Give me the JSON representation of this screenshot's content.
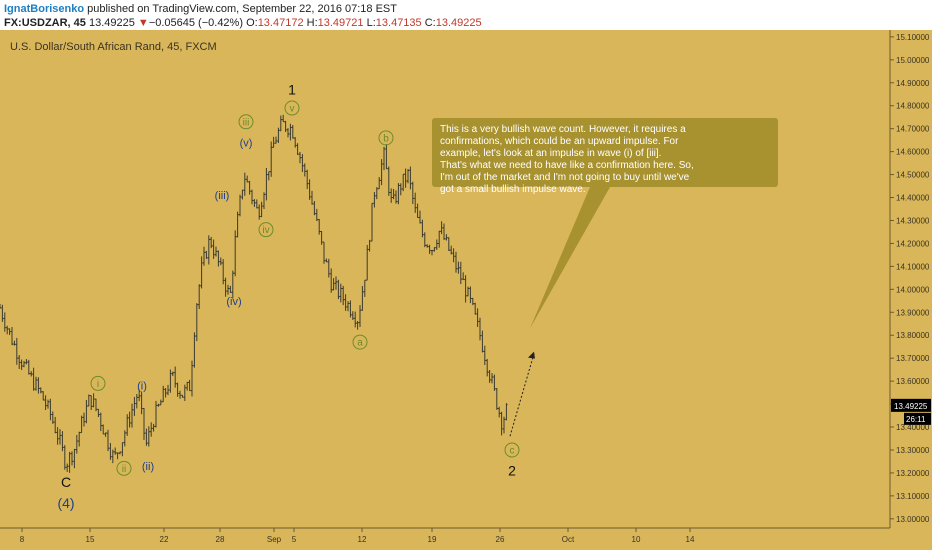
{
  "header": {
    "author": "IgnatBorisenko",
    "published": " published on TradingView.com, September 22, 2016 07:18 EST",
    "symbol": "FX:USDZAR, 45",
    "last": "13.49225",
    "change_arrow": "▼",
    "change": "−0.05645 (−0.42%)",
    "o_label": "O:",
    "o": "13.47172",
    "h_label": "H:",
    "h": "13.49721",
    "l_label": "L:",
    "l": "13.47135",
    "c_label": "C:",
    "c": "13.49225"
  },
  "colors": {
    "background": "#d9b65a",
    "candle": "#3a3a2e",
    "price_line": "#3a3a2e",
    "callout_fill": "#a8912f",
    "circle_label": "#6e8c2a",
    "roman_blue": "#1d3f8c",
    "price_tag": "#000000"
  },
  "chart_data": {
    "type": "candlestick",
    "title": "U.S. Dollar/South African Rand, 45, FXCM",
    "ylim": [
      12.96,
      15.13
    ],
    "y_ticks": [
      "15.10000",
      "15.00000",
      "14.90000",
      "14.80000",
      "14.70000",
      "14.60000",
      "14.50000",
      "14.40000",
      "14.30000",
      "14.20000",
      "14.10000",
      "14.00000",
      "13.90000",
      "13.80000",
      "13.70000",
      "13.60000",
      "13.50000",
      "13.40000",
      "13.30000",
      "13.20000",
      "13.10000",
      "13.00000"
    ],
    "x_ticks": [
      "8",
      "15",
      "22",
      "28",
      "Sep",
      "5",
      "12",
      "19",
      "26",
      "Oct",
      "10",
      "14"
    ],
    "x_tick_pos": [
      1.1,
      4.5,
      8.2,
      11.0,
      13.7,
      14.7,
      18.1,
      21.6,
      25.0,
      28.4,
      31.8,
      34.5
    ],
    "xlim": [
      0,
      44.5
    ],
    "last_price_label": "13.49225",
    "countdown": "26:11",
    "series": [
      {
        "x": 0.0,
        "y": 13.92
      },
      {
        "x": 0.5,
        "y": 13.8
      },
      {
        "x": 1.0,
        "y": 13.7
      },
      {
        "x": 1.5,
        "y": 13.62
      },
      {
        "x": 2.0,
        "y": 13.55
      },
      {
        "x": 2.5,
        "y": 13.46
      },
      {
        "x": 2.9,
        "y": 13.36
      },
      {
        "x": 3.3,
        "y": 13.24
      },
      {
        "x": 3.7,
        "y": 13.3
      },
      {
        "x": 4.1,
        "y": 13.42
      },
      {
        "x": 4.5,
        "y": 13.53
      },
      {
        "x": 4.9,
        "y": 13.46
      },
      {
        "x": 5.3,
        "y": 13.36
      },
      {
        "x": 5.7,
        "y": 13.26
      },
      {
        "x": 6.1,
        "y": 13.34
      },
      {
        "x": 6.5,
        "y": 13.45
      },
      {
        "x": 6.9,
        "y": 13.55
      },
      {
        "x": 7.3,
        "y": 13.32
      },
      {
        "x": 7.7,
        "y": 13.44
      },
      {
        "x": 8.1,
        "y": 13.52
      },
      {
        "x": 8.6,
        "y": 13.62
      },
      {
        "x": 9.1,
        "y": 13.54
      },
      {
        "x": 9.5,
        "y": 13.58
      },
      {
        "x": 9.8,
        "y": 13.92
      },
      {
        "x": 10.1,
        "y": 14.1
      },
      {
        "x": 10.5,
        "y": 14.22
      },
      {
        "x": 10.9,
        "y": 14.12
      },
      {
        "x": 11.2,
        "y": 14.04
      },
      {
        "x": 11.5,
        "y": 13.96
      },
      {
        "x": 11.8,
        "y": 14.25
      },
      {
        "x": 12.2,
        "y": 14.5
      },
      {
        "x": 12.6,
        "y": 14.4
      },
      {
        "x": 12.9,
        "y": 14.33
      },
      {
        "x": 13.3,
        "y": 14.48
      },
      {
        "x": 13.7,
        "y": 14.64
      },
      {
        "x": 14.1,
        "y": 14.72
      },
      {
        "x": 14.6,
        "y": 14.7
      },
      {
        "x": 15.0,
        "y": 14.58
      },
      {
        "x": 15.4,
        "y": 14.45
      },
      {
        "x": 15.8,
        "y": 14.3
      },
      {
        "x": 16.2,
        "y": 14.14
      },
      {
        "x": 16.6,
        "y": 14.02
      },
      {
        "x": 17.0,
        "y": 13.98
      },
      {
        "x": 17.5,
        "y": 13.92
      },
      {
        "x": 17.9,
        "y": 13.87
      },
      {
        "x": 18.3,
        "y": 14.1
      },
      {
        "x": 18.7,
        "y": 14.42
      },
      {
        "x": 19.2,
        "y": 14.58
      },
      {
        "x": 19.6,
        "y": 14.36
      },
      {
        "x": 20.0,
        "y": 14.45
      },
      {
        "x": 20.4,
        "y": 14.5
      },
      {
        "x": 20.8,
        "y": 14.32
      },
      {
        "x": 21.2,
        "y": 14.22
      },
      {
        "x": 21.6,
        "y": 14.18
      },
      {
        "x": 22.0,
        "y": 14.26
      },
      {
        "x": 22.4,
        "y": 14.18
      },
      {
        "x": 22.8,
        "y": 14.1
      },
      {
        "x": 23.2,
        "y": 14.02
      },
      {
        "x": 23.6,
        "y": 13.92
      },
      {
        "x": 24.0,
        "y": 13.8
      },
      {
        "x": 24.4,
        "y": 13.66
      },
      {
        "x": 24.8,
        "y": 13.52
      },
      {
        "x": 25.1,
        "y": 13.42
      },
      {
        "x": 25.4,
        "y": 13.49
      }
    ],
    "projection": [
      {
        "x": 25.5,
        "y": 13.36
      },
      {
        "x": 26.7,
        "y": 13.72
      }
    ],
    "wave_labels": [
      {
        "text": "1",
        "style": "plain",
        "size": 14,
        "x": 14.6,
        "y": 14.87
      },
      {
        "text": "v",
        "style": "circle",
        "x": 14.6,
        "y": 14.79
      },
      {
        "text": "iii",
        "style": "circle",
        "x": 12.3,
        "y": 14.73
      },
      {
        "text": "(v)",
        "style": "blue",
        "x": 12.3,
        "y": 14.64
      },
      {
        "text": "(iii)",
        "style": "blue",
        "x": 11.1,
        "y": 14.41
      },
      {
        "text": "iv",
        "style": "circle",
        "x": 13.3,
        "y": 14.26
      },
      {
        "text": "(iv)",
        "style": "blue",
        "x": 11.7,
        "y": 13.95
      },
      {
        "text": "b",
        "style": "circle",
        "x": 19.3,
        "y": 14.66
      },
      {
        "text": "a",
        "style": "circle",
        "x": 18.0,
        "y": 13.77
      },
      {
        "text": "i",
        "style": "circle",
        "x": 4.9,
        "y": 13.59
      },
      {
        "text": "(i)",
        "style": "blue",
        "x": 7.1,
        "y": 13.58
      },
      {
        "text": "ii",
        "style": "circle",
        "x": 6.2,
        "y": 13.22
      },
      {
        "text": "(ii)",
        "style": "blue",
        "x": 7.4,
        "y": 13.23
      },
      {
        "text": "C",
        "style": "plain",
        "size": 14,
        "x": 3.3,
        "y": 13.16
      },
      {
        "text": "(4)",
        "style": "blueLarge",
        "size": 14,
        "x": 3.3,
        "y": 13.07
      },
      {
        "text": "c",
        "style": "circle",
        "x": 25.6,
        "y": 13.3
      },
      {
        "text": "2",
        "style": "plain",
        "size": 14,
        "x": 25.6,
        "y": 13.21
      }
    ],
    "callout": {
      "text": "This is a very bullish wave count. However, it requires a confirmations, which could be an upward impulse. For example, let's look at an impulse in wave (i) of [iii]. That's what we need to have like a confirmation here. So, I'm out of the market and I'm not going to buy until we've got a small bullish impulse wave.",
      "tail_x": 26.5,
      "tail_y": 13.83
    }
  }
}
